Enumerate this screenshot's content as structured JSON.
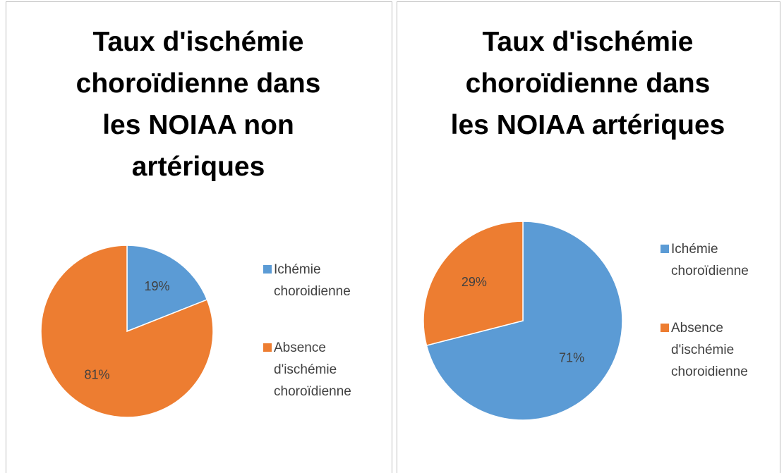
{
  "chart_data": [
    {
      "type": "pie",
      "title": [
        "Taux d'ischémie",
        "choroïdienne dans",
        "les NOIAA non",
        "artériques"
      ],
      "categories": [
        "Ichémie choroidienne",
        "Absence d'ischémie choroïdienne"
      ],
      "values": [
        19,
        81
      ],
      "value_labels": [
        "19%",
        "81%"
      ],
      "colors": [
        "#5b9bd5",
        "#ed7d31"
      ],
      "legend": "right"
    },
    {
      "type": "pie",
      "title": [
        "Taux d'ischémie",
        "choroïdienne dans",
        "les NOIAA artériques"
      ],
      "categories": [
        "Ichémie choroïdienne",
        "Absence d'ischémie choroidienne"
      ],
      "values": [
        71,
        29
      ],
      "value_labels": [
        "71%",
        "29%"
      ],
      "colors": [
        "#5b9bd5",
        "#ed7d31"
      ],
      "legend": "right"
    }
  ]
}
